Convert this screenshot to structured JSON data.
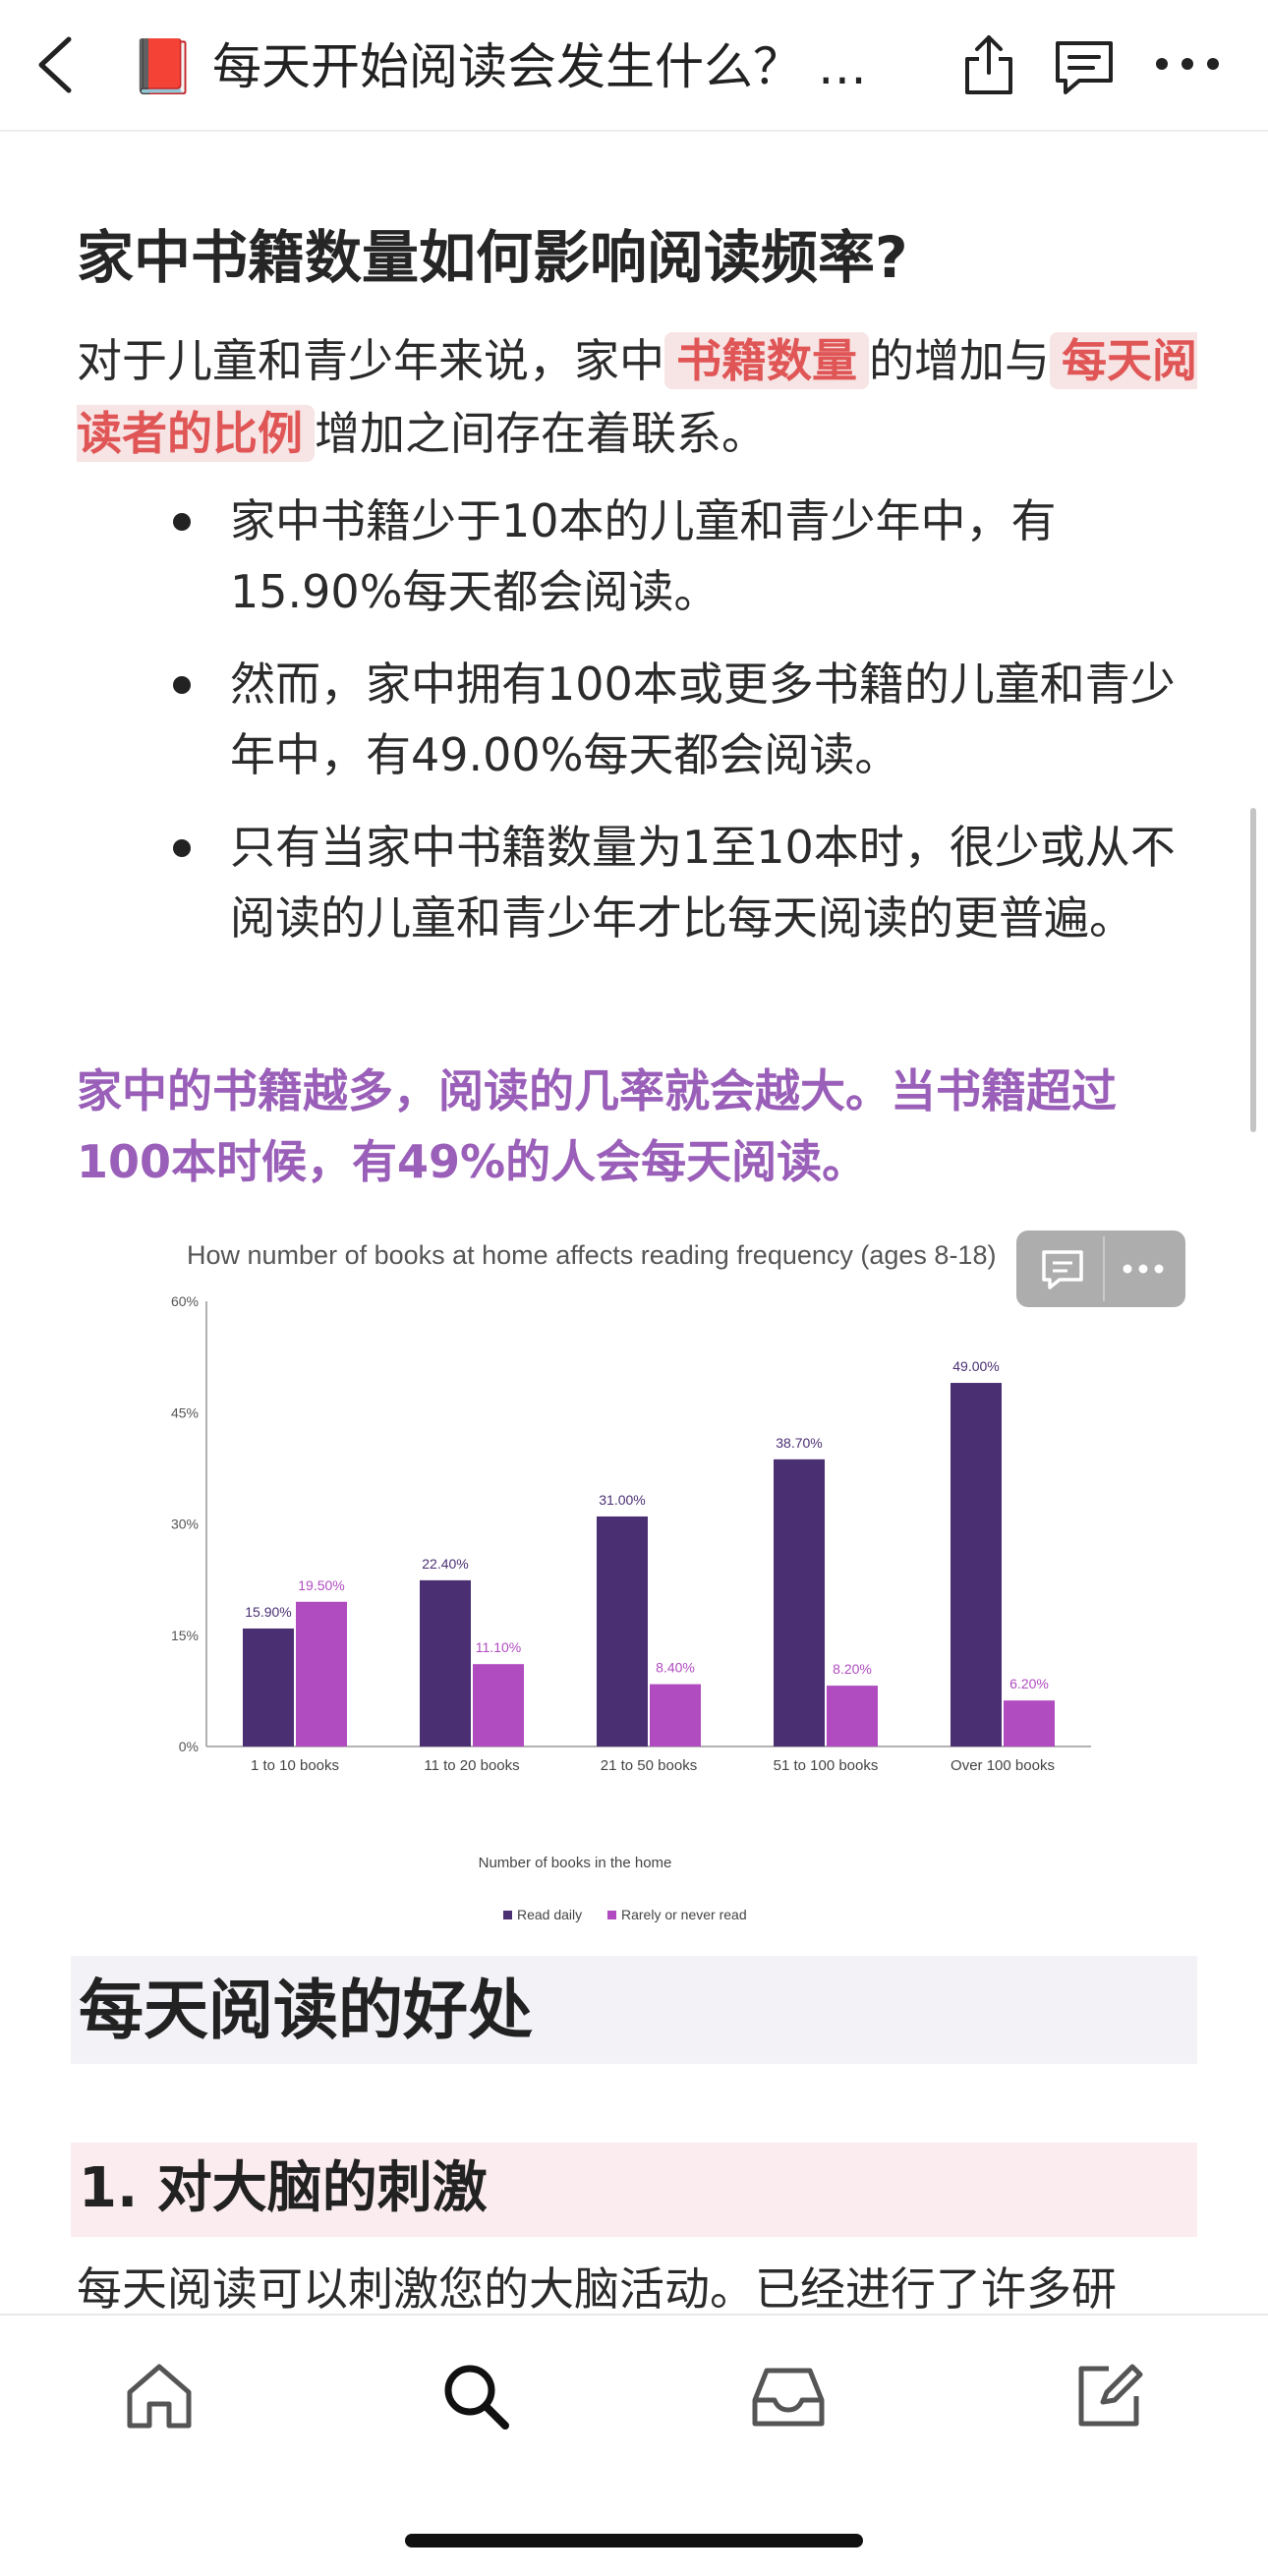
{
  "header": {
    "book_emoji": "📕",
    "title": "每天开始阅读会发生什么？ 揭..."
  },
  "section": {
    "heading": "家中书籍数量如何影响阅读频率?",
    "intro_before": "对于儿童和青少年来说，家中",
    "intro_hl1": "书籍数量",
    "intro_mid": "的增加与",
    "intro_hl2": "每天阅读者的比例",
    "intro_after": "增加之间存在着联系。",
    "bullets": [
      "家中书籍少于10本的儿童和青少年中，有15.90%每天都会阅读。",
      "然而，家中拥有100本或更多书籍的儿童和青少年中，有49.00%每天都会阅读。",
      "只有当家中书籍数量为1至10本时，很少或从不阅读的儿童和青少年才比每天阅读的更普遍。"
    ],
    "highlight": "家中的书籍越多，阅读的几率就会越大。当书籍超过100本时候，有49%的人会每天阅读。"
  },
  "chart_data": {
    "type": "bar",
    "title": "How number of books at home affects reading frequency (ages 8-18)",
    "xlabel": "Number of books in the home",
    "ylabel": "",
    "ylim": [
      0,
      60
    ],
    "yticks": [
      0,
      15,
      30,
      45,
      60
    ],
    "ytick_labels": [
      "0%",
      "15%",
      "30%",
      "45%",
      "60%"
    ],
    "categories": [
      "1 to 10 books",
      "11 to 20 books",
      "21 to 50 books",
      "51 to 100 books",
      "Over 100 books"
    ],
    "series": [
      {
        "name": "Read daily",
        "color": "#4b2f73",
        "values": [
          15.9,
          22.4,
          31.0,
          38.7,
          49.0
        ],
        "labels": [
          "15.90%",
          "22.40%",
          "31.00%",
          "38.70%",
          "49.00%"
        ]
      },
      {
        "name": "Rarely or never read",
        "color": "#b04cc0",
        "values": [
          19.5,
          11.1,
          8.4,
          8.2,
          6.2
        ],
        "labels": [
          "19.50%",
          "11.10%",
          "8.40%",
          "8.20%",
          "6.20%"
        ]
      }
    ],
    "legend_position": "bottom"
  },
  "section2": {
    "heading": "每天阅读的好处",
    "sub_heading": "1. 对大脑的刺激",
    "paragraph": "每天阅读可以刺激您的大脑活动。已经进行了许多研"
  },
  "tabs": [
    "home-icon",
    "search-icon",
    "inbox-icon",
    "edit-icon"
  ],
  "colors": {
    "accent_red": "#e05656",
    "accent_purple": "#9a5fb8"
  }
}
